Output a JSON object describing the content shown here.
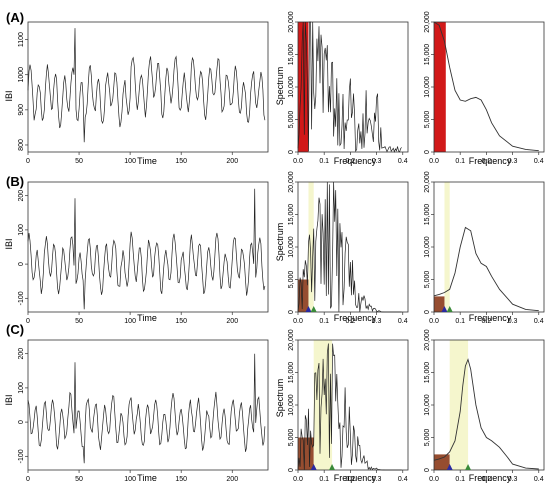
{
  "rows": [
    {
      "label": "(A)",
      "ts": {
        "xlabel": "Time",
        "ylabel": "IBI",
        "xticks": [
          0,
          50,
          100,
          150,
          200
        ],
        "yticks": [
          800,
          900,
          1000,
          1100
        ]
      },
      "spec": {
        "xlabel": "Frequency",
        "ylabel": "Spectrum",
        "xticks": [
          "0.0",
          "0.1",
          "0.2",
          "0.3",
          "0.4"
        ],
        "yticks": [
          "0",
          "5,000",
          "10,000",
          "15,000",
          "20,000"
        ]
      },
      "smooth": {
        "xlabel": "Frequency",
        "xticks": [
          "0.0",
          "0.1",
          "0.2",
          "0.3",
          "0.4"
        ],
        "yticks": [
          "0",
          "5,000",
          "10,000",
          "15,000",
          "20,000"
        ]
      }
    },
    {
      "label": "(B)",
      "ts": {
        "xlabel": "Time",
        "ylabel": "IBI",
        "xticks": [
          0,
          50,
          100,
          150,
          200
        ],
        "yticks": [
          -100,
          0,
          100,
          200
        ]
      },
      "spec": {
        "xlabel": "Frequency",
        "ylabel": "Spectrum",
        "xticks": [
          "0.0",
          "0.1",
          "0.2",
          "0.3",
          "0.4"
        ],
        "yticks": [
          "0",
          "5,000",
          "10,000",
          "15,000",
          "20,000"
        ]
      },
      "smooth": {
        "xlabel": "Frequency",
        "xticks": [
          "0.0",
          "0.1",
          "0.2",
          "0.3",
          "0.4"
        ],
        "yticks": [
          "0",
          "5,000",
          "10,000",
          "15,000",
          "20,000"
        ]
      }
    },
    {
      "label": "(C)",
      "ts": {
        "xlabel": "Time",
        "ylabel": "IBI",
        "xticks": [
          0,
          50,
          100,
          150,
          200
        ],
        "yticks": [
          -100,
          0,
          100,
          200
        ]
      },
      "spec": {
        "xlabel": "Frequency",
        "ylabel": "Spectrum",
        "xticks": [
          "0.0",
          "0.1",
          "0.2",
          "0.3",
          "0.4"
        ],
        "yticks": [
          "0",
          "5,000",
          "10,000",
          "15,000",
          "20,000"
        ]
      },
      "smooth": {
        "xlabel": "Frequency",
        "xticks": [
          "0.0",
          "0.1",
          "0.2",
          "0.3",
          "0.4"
        ],
        "yticks": [
          "0",
          "5,000",
          "10,000",
          "15,000",
          "20,000"
        ]
      }
    }
  ],
  "chart_data": [
    {
      "type": "line",
      "panel": "A-time-series",
      "xlabel": "Time",
      "ylabel": "IBI",
      "xlim": [
        0,
        235
      ],
      "ylim": [
        780,
        1150
      ],
      "baseline": 940,
      "amplitude": 110
    },
    {
      "type": "line",
      "panel": "A-periodogram",
      "xlabel": "Frequency",
      "ylabel": "Spectrum",
      "xlim": [
        0,
        0.42
      ],
      "ylim": [
        0,
        20000
      ],
      "shaded_bands": [
        {
          "from": 0.0,
          "to": 0.04,
          "color": "#cc0000"
        }
      ]
    },
    {
      "type": "line",
      "panel": "A-smoothed-spectrum",
      "xlabel": "Frequency",
      "xlim": [
        0,
        0.42
      ],
      "ylim": [
        0,
        20000
      ],
      "x": [
        0.0,
        0.02,
        0.04,
        0.06,
        0.08,
        0.1,
        0.12,
        0.14,
        0.16,
        0.18,
        0.2,
        0.22,
        0.25,
        0.3,
        0.35,
        0.4
      ],
      "y": [
        20000,
        19500,
        17000,
        13000,
        9500,
        8000,
        7800,
        8200,
        8400,
        8000,
        6500,
        4500,
        2500,
        900,
        400,
        200
      ],
      "shaded_bands": [
        {
          "from": 0.0,
          "to": 0.045,
          "color": "#cc0000"
        }
      ]
    },
    {
      "type": "line",
      "panel": "B-time-series",
      "xlabel": "Time",
      "ylabel": "IBI",
      "xlim": [
        0,
        235
      ],
      "ylim": [
        -140,
        240
      ],
      "baseline": 0,
      "amplitude": 110
    },
    {
      "type": "line",
      "panel": "B-periodogram",
      "xlabel": "Frequency",
      "ylabel": "Spectrum",
      "xlim": [
        0,
        0.42
      ],
      "ylim": [
        0,
        20000
      ],
      "shaded_bands": [
        {
          "from": 0.0,
          "to": 0.04,
          "color": "#8b3a1a"
        },
        {
          "from": 0.04,
          "to": 0.06,
          "color": "#f4f5c8"
        }
      ],
      "markers": [
        {
          "x": 0.04,
          "color": "#2a2aa0"
        },
        {
          "x": 0.06,
          "color": "#3a8a3a"
        }
      ]
    },
    {
      "type": "line",
      "panel": "B-smoothed-spectrum",
      "xlabel": "Frequency",
      "xlim": [
        0,
        0.42
      ],
      "ylim": [
        0,
        20000
      ],
      "x": [
        0.0,
        0.02,
        0.04,
        0.06,
        0.08,
        0.1,
        0.12,
        0.14,
        0.16,
        0.18,
        0.2,
        0.22,
        0.25,
        0.3,
        0.35,
        0.4
      ],
      "y": [
        2500,
        2700,
        3000,
        3500,
        6000,
        10000,
        13000,
        12500,
        9000,
        7500,
        7000,
        5500,
        3500,
        1200,
        400,
        200
      ],
      "shaded_bands": [
        {
          "from": 0.0,
          "to": 0.04,
          "color": "#8b3a1a"
        },
        {
          "from": 0.04,
          "to": 0.06,
          "color": "#f4f5c8"
        }
      ],
      "markers": [
        {
          "x": 0.04,
          "color": "#2a2aa0"
        },
        {
          "x": 0.06,
          "color": "#3a8a3a"
        }
      ]
    },
    {
      "type": "line",
      "panel": "C-time-series",
      "xlabel": "Time",
      "ylabel": "IBI",
      "xlim": [
        0,
        235
      ],
      "ylim": [
        -140,
        240
      ],
      "baseline": 0,
      "amplitude": 100
    },
    {
      "type": "line",
      "panel": "C-periodogram",
      "xlabel": "Frequency",
      "ylabel": "Spectrum",
      "xlim": [
        0,
        0.42
      ],
      "ylim": [
        0,
        20000
      ],
      "shaded_bands": [
        {
          "from": 0.0,
          "to": 0.06,
          "color": "#8b3a1a"
        },
        {
          "from": 0.06,
          "to": 0.13,
          "color": "#f4f5c8"
        }
      ],
      "markers": [
        {
          "x": 0.06,
          "color": "#2a2aa0"
        },
        {
          "x": 0.13,
          "color": "#3a8a3a"
        }
      ]
    },
    {
      "type": "line",
      "panel": "C-smoothed-spectrum",
      "xlabel": "Frequency",
      "xlim": [
        0,
        0.42
      ],
      "ylim": [
        0,
        20000
      ],
      "x": [
        0.0,
        0.02,
        0.04,
        0.06,
        0.08,
        0.1,
        0.11,
        0.12,
        0.13,
        0.14,
        0.16,
        0.18,
        0.2,
        0.22,
        0.25,
        0.28,
        0.3,
        0.35,
        0.4
      ],
      "y": [
        1500,
        1700,
        2000,
        2800,
        4500,
        9000,
        13000,
        16000,
        17000,
        15500,
        10000,
        6500,
        5000,
        4500,
        3500,
        2000,
        900,
        300,
        150
      ],
      "shaded_bands": [
        {
          "from": 0.0,
          "to": 0.06,
          "color": "#8b3a1a"
        },
        {
          "from": 0.06,
          "to": 0.13,
          "color": "#f4f5c8"
        }
      ],
      "markers": [
        {
          "x": 0.06,
          "color": "#2a2aa0"
        },
        {
          "x": 0.13,
          "color": "#3a8a3a"
        }
      ]
    }
  ]
}
